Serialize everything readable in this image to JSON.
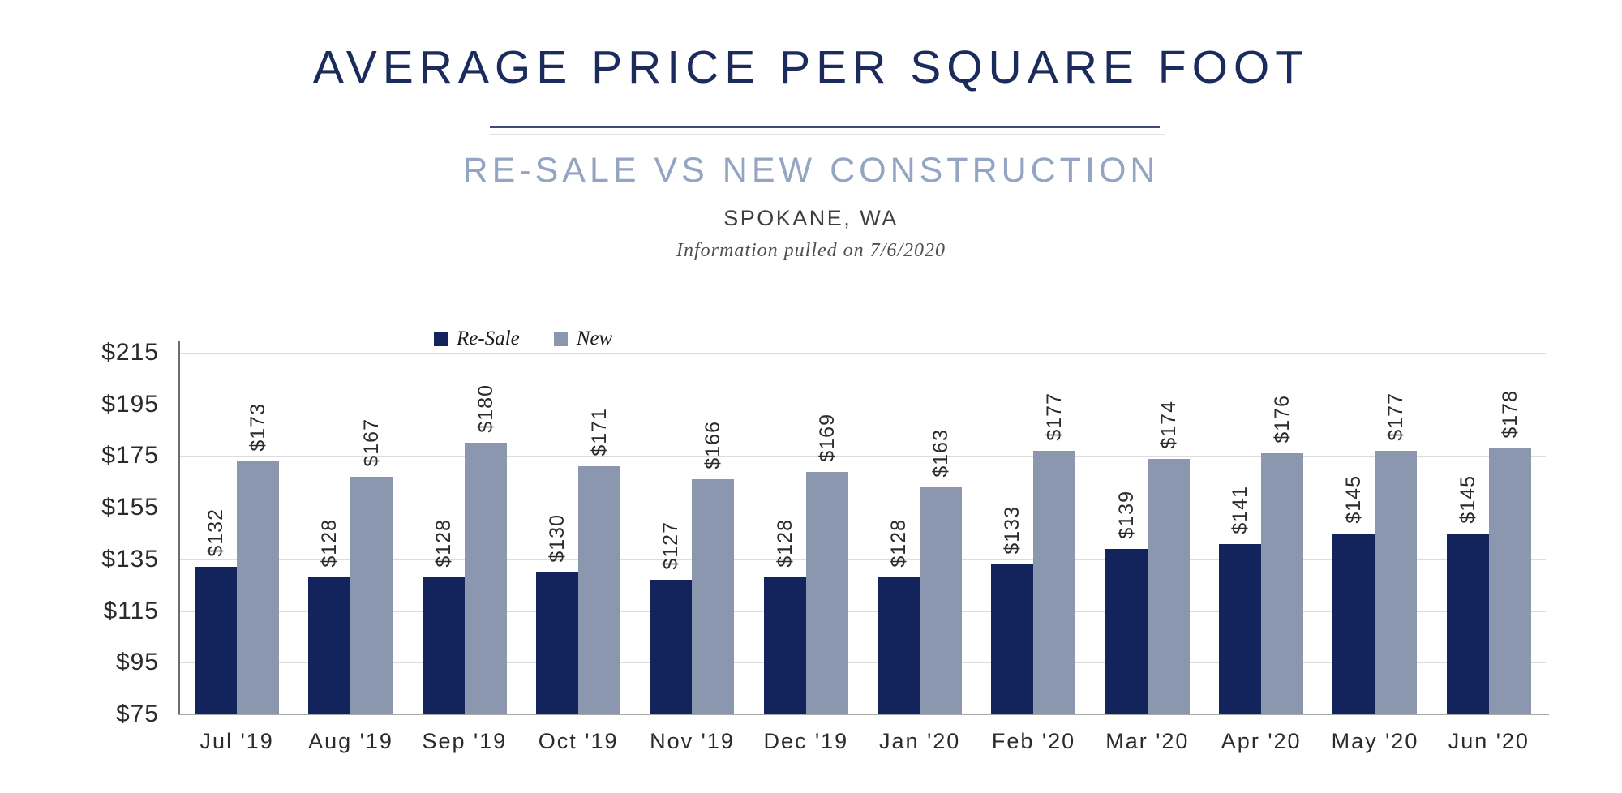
{
  "header": {
    "title": "AVERAGE PRICE PER SQUARE FOOT",
    "subtitle": "RE-SALE VS NEW CONSTRUCTION",
    "location": "SPOKANE, WA",
    "info_note": "Information pulled on 7/6/2020"
  },
  "legend": [
    {
      "label": "Re-Sale",
      "color": "#13235b"
    },
    {
      "label": "New",
      "color": "#8b97ae"
    }
  ],
  "colors": {
    "title": "#1b2b5c",
    "subtitle": "#93a5c2",
    "resale_bar": "#13235b",
    "new_bar": "#8b97ae",
    "gridline": "#dcdcdc",
    "axis_line": "#6e6e6e",
    "baseline": "#a9a9a9",
    "label_text": "#2b2b2b"
  },
  "chart_data": {
    "type": "bar",
    "title": "AVERAGE PRICE PER SQUARE FOOT",
    "subtitle": "RE-SALE VS NEW CONSTRUCTION",
    "location": "SPOKANE, WA",
    "note": "Information pulled on 7/6/2020",
    "categories": [
      "Jul '19",
      "Aug '19",
      "Sep '19",
      "Oct '19",
      "Nov '19",
      "Dec '19",
      "Jan '20",
      "Feb '20",
      "Mar '20",
      "Apr '20",
      "May '20",
      "Jun '20"
    ],
    "series": [
      {
        "name": "Re-Sale",
        "color": "#13235b",
        "values": [
          132,
          128,
          128,
          130,
          127,
          128,
          128,
          133,
          139,
          141,
          145,
          145
        ]
      },
      {
        "name": "New",
        "color": "#8b97ae",
        "values": [
          173,
          167,
          180,
          171,
          166,
          169,
          163,
          177,
          174,
          176,
          177,
          178
        ]
      }
    ],
    "data_labels": [
      [
        "$132",
        "$128",
        "$128",
        "$130",
        "$127",
        "$128",
        "$128",
        "$133",
        "$139",
        "$141",
        "$145",
        "$145"
      ],
      [
        "$173",
        "$167",
        "$180",
        "$171",
        "$166",
        "$169",
        "$163",
        "$177",
        "$174",
        "$176",
        "$177",
        "$178"
      ]
    ],
    "data_label_prefix": "$",
    "data_label_rotation": -90,
    "xlabel": "",
    "ylabel": "",
    "ylim": [
      75,
      215
    ],
    "y_ticks": [
      "$215",
      "$195",
      "$175",
      "$155",
      "$135",
      "$115",
      "$95",
      "$75"
    ],
    "grid": "horizontal",
    "legend_position": "top-inside-left"
  }
}
